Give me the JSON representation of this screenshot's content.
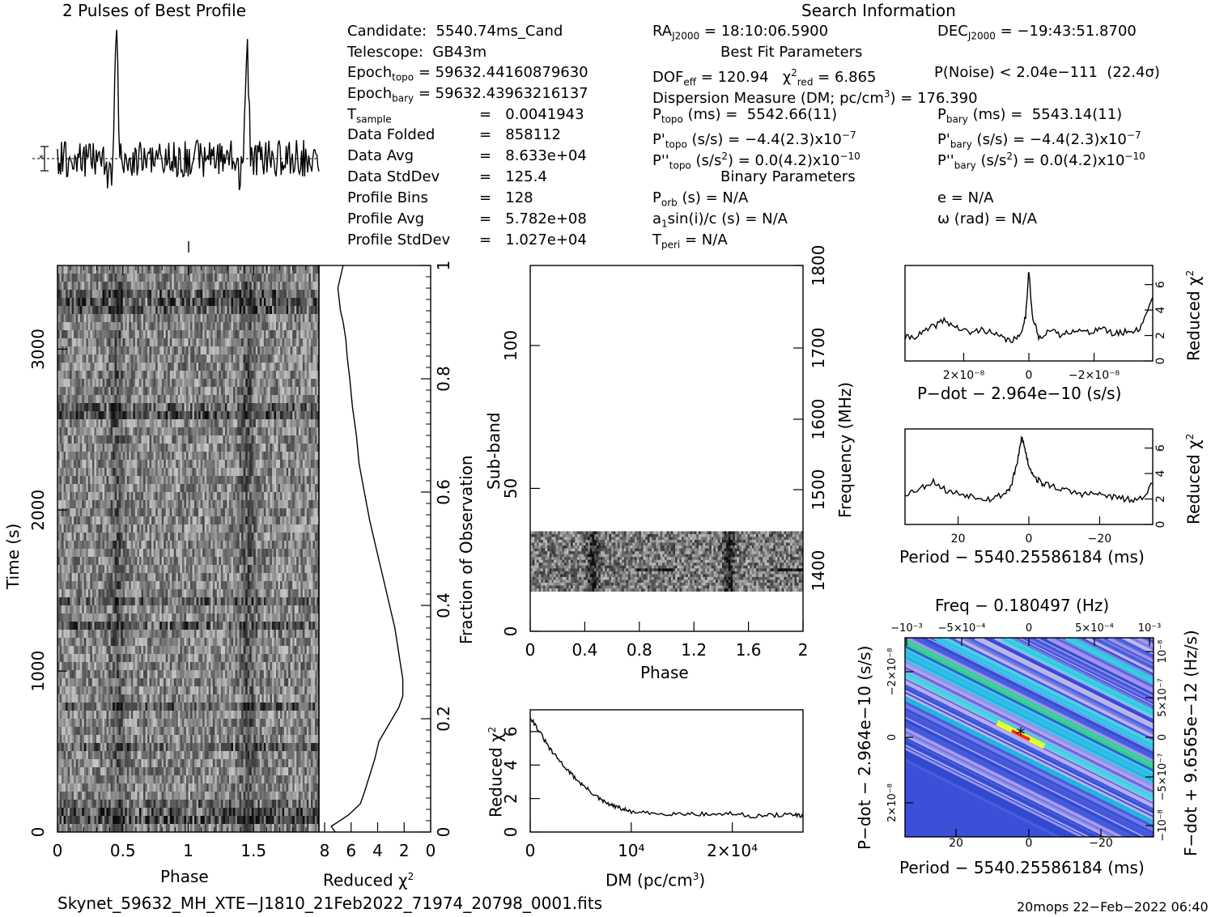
{
  "titles": {
    "profile": "2 Pulses of Best Profile",
    "search": "Search Information",
    "best_fit": "Best Fit Parameters",
    "binary": "Binary Parameters"
  },
  "info_left": [
    "Candidate:  5540.74ms_Cand",
    "Telescope:  GB43m",
    "Epoch",
    "Epoch",
    "T",
    "Data Folded",
    "Data Avg",
    "Data StdDev",
    "Profile Bins",
    "Profile Avg",
    "Profile StdDev"
  ],
  "info_left_vals": [
    "",
    "",
    " = 59632.44160879630",
    " = 59632.43963216137",
    "=   0.0041943",
    "=   858112",
    "=   8.633e+04",
    "=   125.4",
    "=   128",
    "=   5.782e+08",
    "=   1.027e+04"
  ],
  "info_left_subs": [
    "topo",
    "bary",
    "sample"
  ],
  "info_mid": {
    "ra": "RA",
    "ra_sub": "J2000",
    "ra_val": " = 18:10:06.5900",
    "dof": "DOF",
    "dof_sub": "eff",
    "dof_val": " = 120.94   χ",
    "chi_sub": "red",
    "chi_val": " = 6.865",
    "dm": "Dispersion Measure (DM; pc/cm",
    "dm_val": ") = 176.390",
    "ptopo": "P",
    "ptopo_sub": "topo",
    "ptopo_val": " (ms) =  5542.66(11)",
    "pdtopo": "P'",
    "pdtopo_val": " (s/s) = −4.4(2.3)x10",
    "pdtopo_exp": "−7",
    "pddtopo": "P''",
    "pddtopo_val": " (s/s",
    "pddtopo_val2": ") = 0.0(4.2)x10",
    "pddtopo_exp": "−10",
    "porb": "P",
    "porb_sub": "orb",
    "porb_val": " (s) = N/A",
    "a1": "a",
    "a1_val": "sin(i)/c (s) = N/A",
    "tperi": "T",
    "tperi_sub": "peri",
    "tperi_val": " = N/A"
  },
  "info_right": {
    "dec": "DEC",
    "dec_sub": "J2000",
    "dec_val": " = −19:43:51.8700",
    "pnoise": "P(Noise) < 2.04e−111  (22.4σ)",
    "pbary": "P",
    "pbary_sub": "bary",
    "pbary_val": " (ms) =  5543.14(11)",
    "pdbary": "P'",
    "pdbary_val": " (s/s) = −4.4(2.3)x10",
    "pdbary_exp": "−7",
    "pddbary": "P''",
    "pddbary_val": " (s/s",
    "pddbary_val2": ") = 0.0(4.2)x10",
    "pddbary_exp": "−10",
    "ecc": "e = N/A",
    "omega": "ω (rad) = N/A"
  },
  "axis_labels": {
    "time": "Time (s)",
    "phase": "Phase",
    "reduced_chi": "Reduced χ",
    "fraction": "Fraction of Observation",
    "subband": "Sub-band",
    "frequency": "Frequency (MHz)",
    "dm": "DM (pc/cm",
    "dm_end": ")",
    "pdot": "P−dot − 2.964e−10 (s/s)",
    "period": "Period − 5540.25586184 (ms)",
    "freq_top": "Freq − 0.180497 (Hz)",
    "fdot": "F−dot + 9.6565e−12 (Hz/s)",
    "pdot_left": "P−dot − 2.964e−10 (s/s)"
  },
  "footer": {
    "filename": "Skynet_59632_MH_XTE−J1810_21Feb2022_71974_20798_0001.fits",
    "stamp": "20mops 22−Feb−2022 06:40"
  },
  "chart_data": [
    {
      "type": "line",
      "name_hint": "profile",
      "title": "2 Pulses of Best Profile",
      "x_range": [
        0,
        2
      ],
      "peak_phase": [
        0.45,
        1.45
      ]
    },
    {
      "type": "heatmap",
      "name_hint": "time-phase",
      "xlabel": "Phase",
      "ylabel": "Time (s)",
      "x_ticks": [
        "0",
        "0.5",
        "1",
        "1.5"
      ],
      "y_ticks": [
        "0",
        "1000",
        "2000",
        "3000"
      ],
      "xlim": [
        0,
        2
      ],
      "ylim": [
        0,
        3520
      ]
    },
    {
      "type": "line",
      "name_hint": "time-chi",
      "xlabel": "Reduced χ2",
      "x_ticks": [
        "8",
        "6",
        "4",
        "2",
        "0"
      ],
      "y_ticks_right": [
        "0",
        "0.2",
        "0.4",
        "0.6",
        "0.8",
        "1"
      ],
      "ylabel_right": "Fraction of Observation",
      "x": [
        7.2,
        7.5,
        6.2,
        5.3,
        5.0,
        4.6,
        4.2,
        3.9,
        3.4,
        2.9,
        2.4,
        2.1,
        2.1,
        2.3,
        2.5,
        2.7,
        3.0,
        3.3,
        3.6,
        3.9,
        4.2,
        4.6,
        5.0,
        5.4,
        5.6,
        5.9,
        6.1,
        6.3,
        6.4,
        6.6,
        6.8,
        6.9,
        7.0,
        6.8,
        6.6
      ],
      "y": [
        0.0,
        0.01,
        0.03,
        0.05,
        0.07,
        0.1,
        0.13,
        0.16,
        0.18,
        0.2,
        0.22,
        0.24,
        0.27,
        0.3,
        0.33,
        0.36,
        0.39,
        0.42,
        0.45,
        0.48,
        0.51,
        0.55,
        0.6,
        0.65,
        0.7,
        0.75,
        0.8,
        0.84,
        0.87,
        0.9,
        0.92,
        0.94,
        0.96,
        0.98,
        1.0
      ]
    },
    {
      "type": "heatmap",
      "name_hint": "subband-phase",
      "xlabel": "Phase",
      "ylabel": "Sub-band",
      "ylabel_right": "Frequency (MHz)",
      "x_ticks": [
        "0",
        "0.4",
        "0.8",
        "1.2",
        "1.6",
        "2"
      ],
      "y_ticks": [
        "0",
        "50",
        "100"
      ],
      "y_ticks_right": [
        "1400",
        "1500",
        "1600",
        "1700",
        "1800"
      ],
      "xlim": [
        0,
        2
      ],
      "ylim": [
        0,
        128
      ],
      "band": [
        14,
        35
      ]
    },
    {
      "type": "line",
      "name_hint": "dm-chi",
      "xlabel": "DM (pc/cm3)",
      "ylabel": "Reduced χ2",
      "x_ticks": [
        "0",
        "10⁴",
        "2×10⁴"
      ],
      "y_ticks": [
        "0",
        "2",
        "4",
        "6"
      ],
      "xlim": [
        0,
        27000
      ],
      "ylim": [
        0,
        7.3
      ],
      "x": [
        0,
        1000,
        2000,
        3000,
        4000,
        5000,
        6000,
        7000,
        8000,
        9000,
        10000,
        12000,
        14000,
        16000,
        18000,
        20000,
        22000,
        24000,
        26000,
        27000
      ],
      "y": [
        6.9,
        5.9,
        4.9,
        4.2,
        3.5,
        2.9,
        2.4,
        1.9,
        1.6,
        1.4,
        1.2,
        1.1,
        1.1,
        1.1,
        1.05,
        1.1,
        0.95,
        1.0,
        1.05,
        0.9
      ]
    },
    {
      "type": "line",
      "name_hint": "pdot-chi",
      "xlabel": "P−dot − 2.964e−10 (s/s)",
      "ylabel": "Reduced χ2",
      "x_ticks": [
        "2×10⁻⁸",
        "0",
        "−2×10⁻⁸"
      ],
      "y_ticks": [
        "0",
        "2",
        "4",
        "6"
      ],
      "xlim": [
        3.8e-08,
        -3.8e-08
      ],
      "ylim": [
        0,
        7.5
      ],
      "x": [
        3.8e-08,
        3.4e-08,
        3e-08,
        2.6e-08,
        2.2e-08,
        1.8e-08,
        1.4e-08,
        1e-08,
        6e-09,
        3e-09,
        1e-09,
        0,
        -1e-09,
        -3e-09,
        -6e-09,
        -1e-08,
        -1.4e-08,
        -1.8e-08,
        -2.2e-08,
        -2.6e-08,
        -3e-08,
        -3.4e-08,
        -3.8e-08
      ],
      "y": [
        1.8,
        2.0,
        2.6,
        3.2,
        2.6,
        2.2,
        2.5,
        2.0,
        1.6,
        1.8,
        3.5,
        7.2,
        3.6,
        1.8,
        2.4,
        2.0,
        2.5,
        2.2,
        2.6,
        2.1,
        2.3,
        2.5,
        5.0
      ]
    },
    {
      "type": "line",
      "name_hint": "period-chi",
      "xlabel": "Period − 5540.25586184 (ms)",
      "ylabel": "Reduced χ2",
      "x_ticks": [
        "20",
        "0",
        "−20"
      ],
      "y_ticks": [
        "0",
        "2",
        "4",
        "6"
      ],
      "xlim": [
        35,
        -35
      ],
      "ylim": [
        0,
        7.5
      ],
      "x": [
        35,
        31,
        27,
        23,
        19,
        15,
        11,
        7,
        5,
        3,
        2,
        1,
        0,
        -2,
        -4,
        -7,
        -11,
        -15,
        -19,
        -23,
        -27,
        -31,
        -35
      ],
      "y": [
        2.4,
        2.8,
        3.4,
        2.6,
        2.4,
        2.2,
        2.0,
        2.4,
        3.0,
        5.2,
        6.9,
        5.8,
        4.6,
        3.6,
        3.2,
        3.0,
        2.6,
        2.4,
        2.4,
        2.2,
        2.0,
        1.8,
        3.2
      ]
    },
    {
      "type": "heatmap",
      "name_hint": "pdot-period",
      "xlabel": "Period − 5540.25586184 (ms)",
      "ylabel": "P−dot − 2.964e−10 (s/s)",
      "x_ticks": [
        "20",
        "0",
        "−20"
      ],
      "y_ticks": [
        "2×10⁻⁸",
        "0",
        "−2×10⁻⁸"
      ],
      "x2_label": "Freq − 0.180497 (Hz)",
      "x2_ticks": [
        "−10⁻³",
        "−5×10⁻⁴",
        "0",
        "5×10⁻⁴",
        "10⁻³"
      ],
      "y2_label": "F−dot + 9.6565e−12 (Hz/s)",
      "y2_ticks": [
        "−10⁻⁸",
        "−5×10⁻⁷",
        "0",
        "5×10⁻⁷",
        "10⁻⁸"
      ],
      "best": [
        -2,
        0
      ]
    }
  ]
}
